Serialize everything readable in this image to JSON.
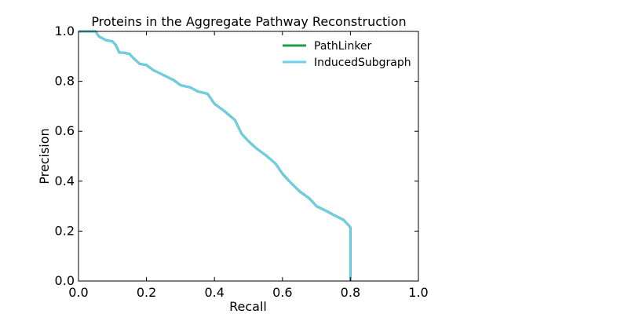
{
  "chart_data": {
    "type": "line",
    "title": "Proteins in the Aggregate Pathway Reconstruction",
    "xlabel": "Recall",
    "ylabel": "Precision",
    "xlim": [
      0.0,
      1.0
    ],
    "ylim": [
      0.0,
      1.0
    ],
    "xticks": [
      "0.0",
      "0.2",
      "0.4",
      "0.6",
      "0.8",
      "1.0"
    ],
    "yticks": [
      "0.0",
      "0.2",
      "0.4",
      "0.6",
      "0.8",
      "1.0"
    ],
    "grid": false,
    "legend_position": "upper-right",
    "series": [
      {
        "name": "PathLinker",
        "color": "#1f9e48",
        "x": [
          0.0,
          0.05,
          0.06,
          0.08,
          0.1,
          0.11,
          0.12,
          0.13,
          0.15,
          0.16,
          0.18,
          0.2,
          0.22,
          0.25,
          0.28,
          0.3,
          0.33,
          0.35,
          0.38,
          0.4,
          0.43,
          0.46,
          0.48,
          0.5,
          0.52,
          0.55,
          0.58,
          0.6,
          0.62,
          0.65,
          0.68,
          0.7,
          0.73,
          0.75,
          0.78,
          0.8,
          0.8
        ],
        "y": [
          1.0,
          1.0,
          0.98,
          0.965,
          0.96,
          0.945,
          0.915,
          0.915,
          0.91,
          0.895,
          0.87,
          0.865,
          0.845,
          0.825,
          0.805,
          0.785,
          0.775,
          0.76,
          0.75,
          0.71,
          0.68,
          0.645,
          0.59,
          0.56,
          0.535,
          0.505,
          0.47,
          0.43,
          0.4,
          0.36,
          0.33,
          0.3,
          0.28,
          0.265,
          0.245,
          0.215,
          0.0
        ]
      },
      {
        "name": "InducedSubgraph",
        "color": "#6fcff0",
        "x": [
          0.0,
          0.05,
          0.06,
          0.08,
          0.1,
          0.11,
          0.12,
          0.13,
          0.15,
          0.16,
          0.18,
          0.2,
          0.22,
          0.25,
          0.28,
          0.3,
          0.33,
          0.35,
          0.38,
          0.4,
          0.43,
          0.46,
          0.48,
          0.5,
          0.52,
          0.55,
          0.58,
          0.6,
          0.62,
          0.65,
          0.68,
          0.7,
          0.73,
          0.75,
          0.78,
          0.8,
          0.8
        ],
        "y": [
          1.0,
          1.0,
          0.98,
          0.965,
          0.96,
          0.945,
          0.915,
          0.915,
          0.91,
          0.895,
          0.87,
          0.865,
          0.845,
          0.825,
          0.805,
          0.785,
          0.775,
          0.76,
          0.75,
          0.71,
          0.68,
          0.645,
          0.59,
          0.56,
          0.535,
          0.505,
          0.47,
          0.43,
          0.4,
          0.36,
          0.33,
          0.3,
          0.28,
          0.265,
          0.245,
          0.215,
          0.0
        ]
      }
    ]
  }
}
